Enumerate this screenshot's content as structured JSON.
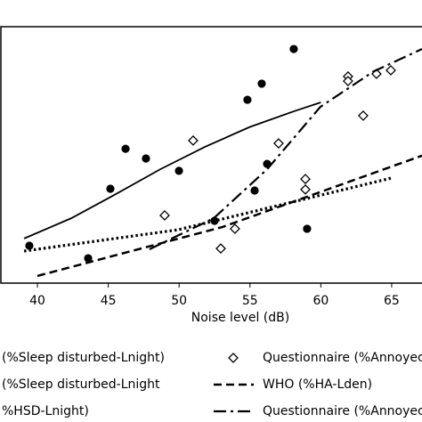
{
  "chart_data": {
    "type": "scatter-line",
    "x_label": "Noise level (dB)",
    "xlim": [
      37.36,
      67.14
    ],
    "xticks": [
      40,
      45,
      50,
      55,
      60,
      65
    ],
    "ylim": [
      0,
      100
    ],
    "series": [
      {
        "name": "(%Sleep disturbed-Lnight)",
        "color": "#000000",
        "marker": "circle",
        "style": "none",
        "x": [
          39.43,
          43.58,
          45.15,
          46.22,
          47.66,
          49.99,
          52.5,
          54.82,
          55.83,
          56.21,
          55.33,
          58.09,
          59.03
        ],
        "values": [
          14.6,
          9.7,
          36.8,
          52.4,
          48.6,
          43.8,
          24.3,
          71.5,
          77.8,
          46.5,
          36.1,
          91.3,
          21.2
        ]
      },
      {
        "name": "(%Sleep disturbed-Lnight",
        "color": "#000000",
        "marker": "none",
        "style": "solid",
        "x": [
          39.06,
          42.39,
          45.53,
          48.67,
          51.81,
          54.95,
          58.09,
          60.0
        ],
        "values": [
          17.4,
          25.3,
          34.7,
          44.4,
          53.1,
          60.8,
          67.0,
          70.5
        ]
      },
      {
        "name": "%HSD-Lnight)",
        "color": "#000000",
        "marker": "none",
        "style": "dotted",
        "x": [
          39.06,
          49.92,
          65.0
        ],
        "values": [
          12.5,
          20.8,
          41.0
        ]
      },
      {
        "name": "Questionnaire (%Annoyec",
        "color": "#000000",
        "marker": "diamond",
        "style": "none",
        "x": [
          48.98,
          50.99,
          52.94,
          53.94,
          57.02,
          58.91,
          58.91,
          61.92,
          61.92,
          62.99,
          63.93,
          64.94
        ],
        "values": [
          26.4,
          55.6,
          13.5,
          21.2,
          54.5,
          40.6,
          36.5,
          80.6,
          78.8,
          65.3,
          81.6,
          83.0
        ]
      },
      {
        "name": "WHO (%HA-Lden)",
        "color": "#000000",
        "marker": "none",
        "style": "dashed",
        "x": [
          40.0,
          53.07,
          67.14
        ],
        "values": [
          2.8,
          21.9,
          49.7
        ]
      },
      {
        "name": "Questionnaire (%Annoyec",
        "color": "#000000",
        "marker": "none",
        "style": "dashdot",
        "x": [
          47.91,
          52.44,
          56.21,
          59.97,
          63.74,
          67.14
        ],
        "values": [
          13.2,
          25.3,
          44.4,
          68.75,
          82.6,
          91.3
        ]
      }
    ]
  }
}
